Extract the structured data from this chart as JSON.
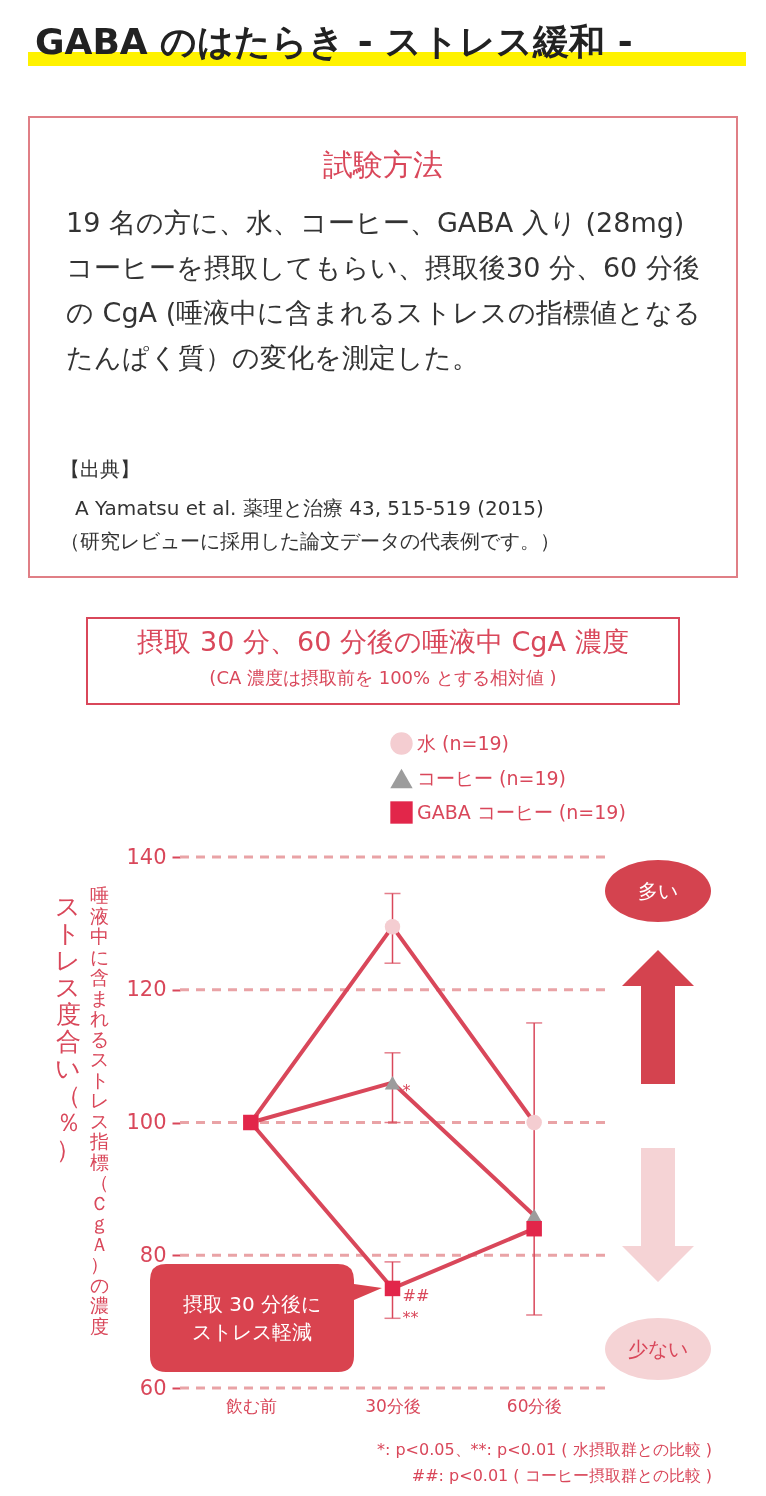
{
  "chart_data": {
    "type": "line",
    "title": "GABA のはたらき - ストレス緩和 -",
    "subtitle": "摂取 30 分、60 分後の唾液中 CgA 濃度",
    "annotations": [
      "試験方法",
      "19 名の方に、水、コーヒー、GABA 入り (28mg) コーヒーを摂取してもらい、摂取後30 分、60 分後の CgA (唾液中に含まれるストレスの指標値となるたんぱく質）の変化を測定した。",
      "【出典】",
      "A Yamatsu et al. 薬理と治療 43, 515-519 (2015)",
      "（研究レビューに採用した論文データの代表例です。）",
      "(CA 濃度は摂取前を 100% とする相対値 )",
      "多い",
      "少ない",
      "摂取 30 分後にストレス軽減",
      "*: p<0.05、**: p<0.01 ( 水摂取群との比較 )",
      "##: p<0.01 ( コーヒー摂取群との比較 )",
      "唾液中に含まれるストレス指標（ＣｇＡ）の濃度",
      {
        "text": "*",
        "x": "30分後",
        "y": 106
      },
      {
        "text": "##\n**",
        "x": "30分後",
        "y": 75
      }
    ],
    "ylabel": "ストレス度合い（％）",
    "categories": [
      "飲む前",
      "30分後",
      "60分後"
    ],
    "series": [
      {
        "name": "水 (n=19)",
        "color": "#f4cdd1",
        "marker": "circle",
        "values": [
          100,
          129.5,
          100
        ],
        "errors": [
          null,
          [
            124,
            134.5
          ],
          [
            71,
            115
          ]
        ]
      },
      {
        "name": "コーヒー (n=19)",
        "color": "#9c9c9c",
        "marker": "triangle",
        "values": [
          100,
          106,
          86
        ],
        "errors": [
          null,
          [
            100,
            110.5
          ],
          null
        ]
      },
      {
        "name": "GABA コーヒー (n=19)",
        "color": "#e2264a",
        "marker": "square",
        "values": [
          100,
          75,
          84
        ],
        "errors": [
          null,
          [
            70.5,
            79
          ],
          null
        ]
      }
    ],
    "ylim": [
      60,
      140
    ],
    "yticks": [
      60,
      80,
      100,
      120,
      140
    ],
    "grid": "y",
    "legend": "top right"
  }
}
